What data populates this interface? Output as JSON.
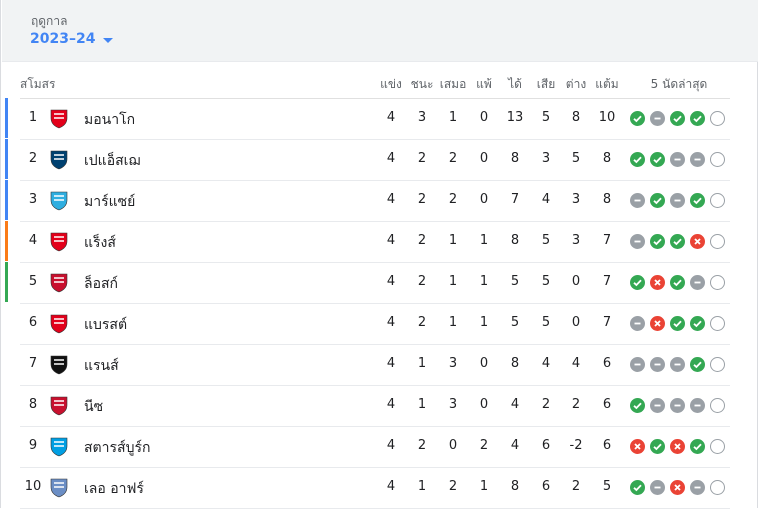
{
  "header": {
    "season_label": "ฤดูกาล",
    "season_value": "2023–24"
  },
  "columns": {
    "club": "สโมสร",
    "played": "แข่ง",
    "won": "ชนะ",
    "drawn": "เสมอ",
    "lost": "แพ้",
    "gf": "ได้",
    "ga": "เสีย",
    "gd": "ต่าง",
    "pts": "แต้ม",
    "form": "5 นัดล่าสุด"
  },
  "colors": {
    "cl": "#4285f4",
    "el": "#fa7b17",
    "ecl": "#34a853",
    "win": "#34a853",
    "draw": "#9aa0a6",
    "loss": "#ea4335"
  },
  "rows": [
    {
      "pos": "1",
      "name": "มอนาโก",
      "played": "4",
      "won": "3",
      "drawn": "1",
      "lost": "0",
      "gf": "13",
      "ga": "5",
      "gd": "8",
      "pts": "10",
      "form": [
        "w",
        "d",
        "w",
        "w",
        "n"
      ],
      "zone": "cl",
      "crest": "monaco-crest-icon"
    },
    {
      "pos": "2",
      "name": "เปแอ็สเฌ",
      "played": "4",
      "won": "2",
      "drawn": "2",
      "lost": "0",
      "gf": "8",
      "ga": "3",
      "gd": "5",
      "pts": "8",
      "form": [
        "w",
        "w",
        "d",
        "d",
        "n"
      ],
      "zone": "cl",
      "crest": "psg-crest-icon"
    },
    {
      "pos": "3",
      "name": "มาร์แซย์",
      "played": "4",
      "won": "2",
      "drawn": "2",
      "lost": "0",
      "gf": "7",
      "ga": "4",
      "gd": "3",
      "pts": "8",
      "form": [
        "d",
        "w",
        "d",
        "w",
        "n"
      ],
      "zone": "cl",
      "crest": "marseille-crest-icon"
    },
    {
      "pos": "4",
      "name": "แร็งส์",
      "played": "4",
      "won": "2",
      "drawn": "1",
      "lost": "1",
      "gf": "8",
      "ga": "5",
      "gd": "3",
      "pts": "7",
      "form": [
        "d",
        "w",
        "w",
        "l",
        "n"
      ],
      "zone": "el",
      "crest": "reims-crest-icon"
    },
    {
      "pos": "5",
      "name": "ล็อสก์",
      "played": "4",
      "won": "2",
      "drawn": "1",
      "lost": "1",
      "gf": "5",
      "ga": "5",
      "gd": "0",
      "pts": "7",
      "form": [
        "w",
        "l",
        "w",
        "d",
        "n"
      ],
      "zone": "ecl",
      "crest": "lille-crest-icon"
    },
    {
      "pos": "6",
      "name": "แบรสต์",
      "played": "4",
      "won": "2",
      "drawn": "1",
      "lost": "1",
      "gf": "5",
      "ga": "5",
      "gd": "0",
      "pts": "7",
      "form": [
        "d",
        "l",
        "w",
        "w",
        "n"
      ],
      "zone": "",
      "crest": "brest-crest-icon"
    },
    {
      "pos": "7",
      "name": "แรนส์",
      "played": "4",
      "won": "1",
      "drawn": "3",
      "lost": "0",
      "gf": "8",
      "ga": "4",
      "gd": "4",
      "pts": "6",
      "form": [
        "d",
        "d",
        "d",
        "w",
        "n"
      ],
      "zone": "",
      "crest": "rennes-crest-icon"
    },
    {
      "pos": "8",
      "name": "นีซ",
      "played": "4",
      "won": "1",
      "drawn": "3",
      "lost": "0",
      "gf": "4",
      "ga": "2",
      "gd": "2",
      "pts": "6",
      "form": [
        "w",
        "d",
        "d",
        "d",
        "n"
      ],
      "zone": "",
      "crest": "nice-crest-icon"
    },
    {
      "pos": "9",
      "name": "สตารส์บูร์ก",
      "played": "4",
      "won": "2",
      "drawn": "0",
      "lost": "2",
      "gf": "4",
      "ga": "6",
      "gd": "-2",
      "pts": "6",
      "form": [
        "l",
        "w",
        "l",
        "w",
        "n"
      ],
      "zone": "",
      "crest": "strasbourg-crest-icon"
    },
    {
      "pos": "10",
      "name": "เลอ อาฟร์",
      "played": "4",
      "won": "1",
      "drawn": "2",
      "lost": "1",
      "gf": "8",
      "ga": "6",
      "gd": "2",
      "pts": "5",
      "form": [
        "w",
        "d",
        "l",
        "d",
        "n"
      ],
      "zone": "",
      "crest": "le-havre-crest-icon"
    }
  ]
}
